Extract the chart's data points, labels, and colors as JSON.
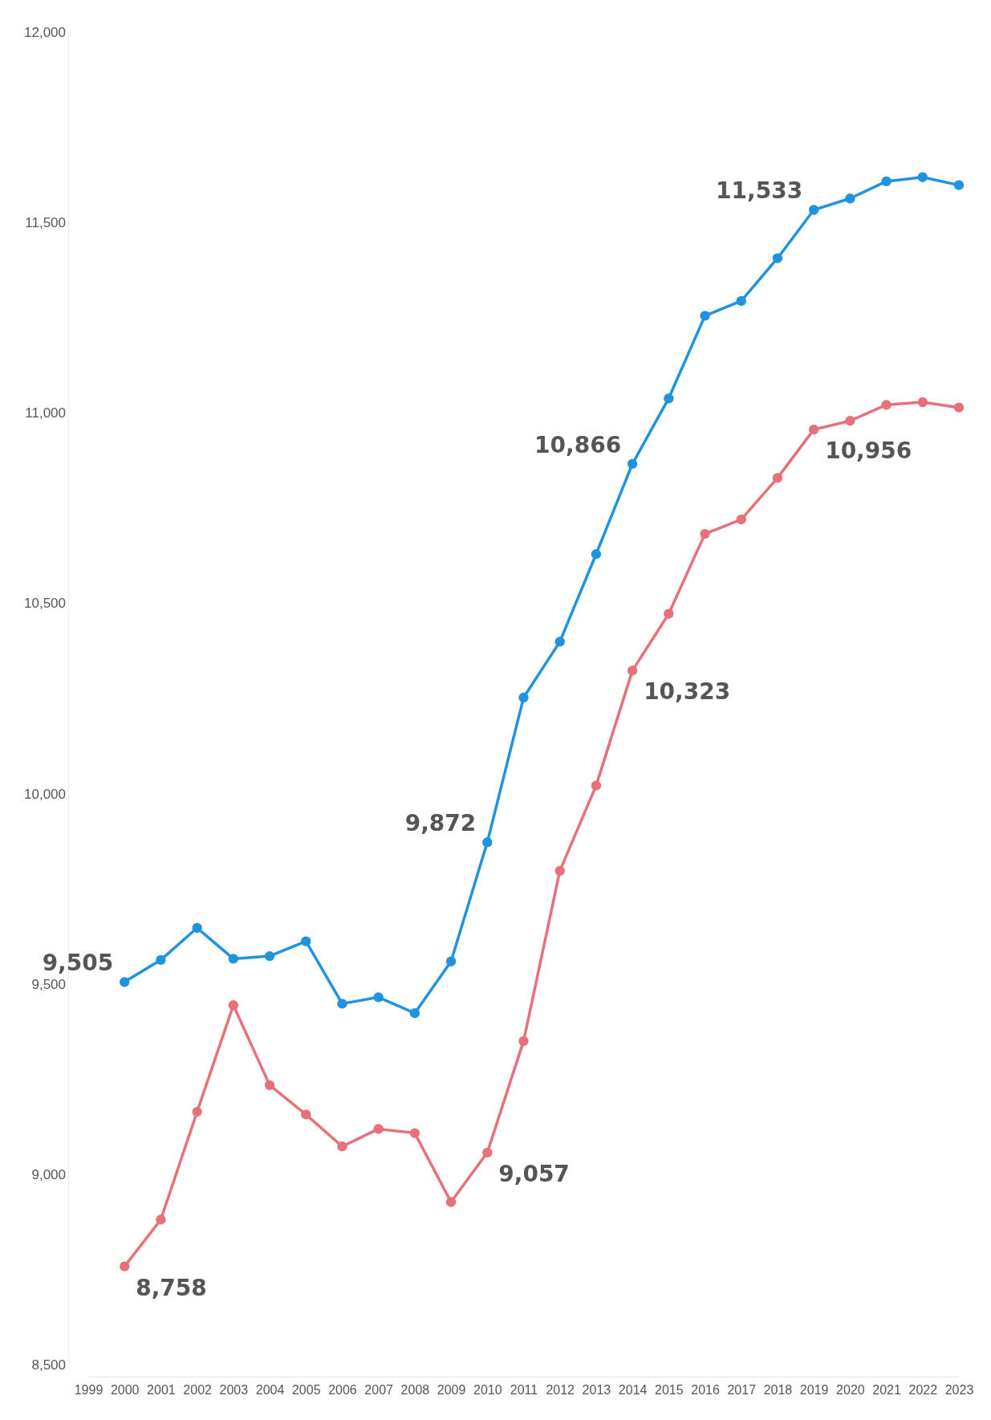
{
  "chart_data": {
    "type": "line",
    "x": [
      2000,
      2001,
      2002,
      2003,
      2004,
      2005,
      2006,
      2007,
      2008,
      2009,
      2010,
      2011,
      2012,
      2013,
      2014,
      2015,
      2016,
      2017,
      2018,
      2019,
      2020,
      2021,
      2022,
      2023
    ],
    "series": [
      {
        "color": "#1f93e0",
        "values": [
          9505,
          9563,
          9647,
          9566,
          9573,
          9612,
          9448,
          9465,
          9423,
          9559,
          9872,
          10252,
          10399,
          10629,
          10866,
          11038,
          11255,
          11294,
          11406,
          11533,
          11563,
          11608,
          11619,
          11598
        ],
        "value_labels": [
          "9,505",
          null,
          null,
          null,
          null,
          null,
          null,
          null,
          null,
          null,
          "9,872",
          null,
          null,
          null,
          "10,866",
          null,
          null,
          null,
          null,
          "11,533",
          null,
          null,
          null,
          null
        ]
      },
      {
        "color": "#e8707a",
        "values": [
          8758,
          8881,
          9164,
          9444,
          9234,
          9157,
          9073,
          9119,
          9108,
          8927,
          9057,
          9350,
          9797,
          10021,
          10323,
          10472,
          10682,
          10720,
          10829,
          10956,
          10979,
          11021,
          11028,
          11014
        ],
        "value_labels": [
          "8,758",
          null,
          null,
          null,
          null,
          null,
          null,
          null,
          null,
          null,
          "9,057",
          null,
          null,
          null,
          "10,323",
          null,
          null,
          null,
          null,
          "10,956",
          null,
          null,
          null,
          null
        ]
      }
    ],
    "xlim": [
      1999,
      2023
    ],
    "xticks": [
      1999,
      2000,
      2001,
      2002,
      2003,
      2004,
      2005,
      2006,
      2007,
      2008,
      2009,
      2010,
      2011,
      2012,
      2013,
      2014,
      2015,
      2016,
      2017,
      2018,
      2019,
      2020,
      2021,
      2022,
      2023
    ],
    "ylim": [
      8500,
      12000
    ],
    "yticks": [
      {
        "value": 8500,
        "label": "8,500"
      },
      {
        "value": 9000,
        "label": "9,000"
      },
      {
        "value": 9500,
        "label": "9,500"
      },
      {
        "value": 10000,
        "label": "10,000"
      },
      {
        "value": 10500,
        "label": "10,500"
      },
      {
        "value": 11000,
        "label": "11,000"
      },
      {
        "value": 11500,
        "label": "11,500"
      },
      {
        "value": 12000,
        "label": "12,000"
      }
    ],
    "marker": "circle",
    "line_style": "solid"
  }
}
